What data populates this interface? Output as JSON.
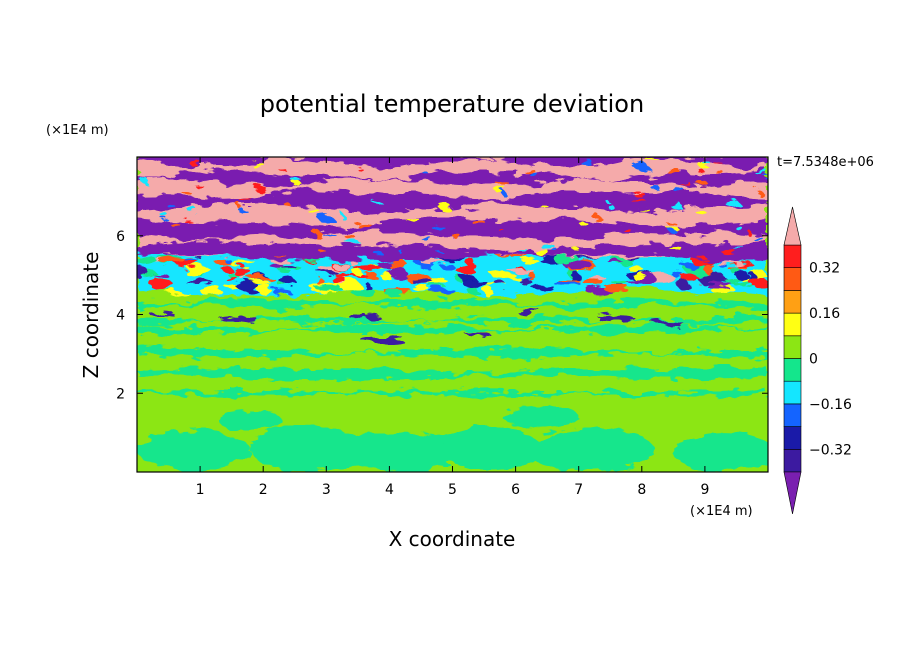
{
  "chart_data": {
    "type": "heatmap",
    "title": "potential temperature deviation",
    "xlabel": "X coordinate",
    "ylabel": "Z coordinate",
    "x_unit": "(×1E4 m)",
    "y_unit": "(×1E4 m)",
    "time_label": "t=7.5348e+06",
    "xlim": [
      0,
      10
    ],
    "ylim": [
      0,
      8
    ],
    "x_ticks": [
      1,
      2,
      3,
      4,
      5,
      6,
      7,
      8,
      9
    ],
    "y_ticks": [
      2,
      4,
      6
    ],
    "colorbar": {
      "levels": [
        -0.4,
        -0.32,
        -0.24,
        -0.16,
        -0.08,
        0,
        0.08,
        0.16,
        0.24,
        0.32,
        0.4
      ],
      "colors": [
        "#7a1fb0",
        "#3c1aa0",
        "#1a1aa8",
        "#1464ff",
        "#14e6ff",
        "#14e68c",
        "#8ce614",
        "#ffff14",
        "#ffa014",
        "#ff5a14",
        "#ff1e1e",
        "#f5aaaa"
      ],
      "tick_labels": [
        "0.32",
        "0.16",
        "0",
        "−0.16",
        "−0.32"
      ],
      "tick_values": [
        0.32,
        0.16,
        0,
        -0.16,
        -0.32
      ],
      "extend": "both"
    },
    "layers": [
      {
        "z": [
          0,
          2.0
        ],
        "dominant": "0 to 0.08 (light green)",
        "pattern": "large rounded convective cells, 0 to -0.08 (teal)"
      },
      {
        "z": [
          2.0,
          4.6
        ],
        "dominant": "0 to 0.08 (light green)",
        "pattern": "horizontal bands, teal streaks, scattered dark-blue blobs"
      },
      {
        "z": [
          4.6,
          5.5
        ],
        "dominant": "mixed",
        "pattern": "strong fluctuations, red/orange/yellow/cyan/blue speckles"
      },
      {
        "z": [
          5.5,
          8.0
        ],
        "dominant": "alternating > 0.4 (pink) and < -0.4 (purple)",
        "pattern": "wavy horizontal stripes"
      }
    ]
  }
}
